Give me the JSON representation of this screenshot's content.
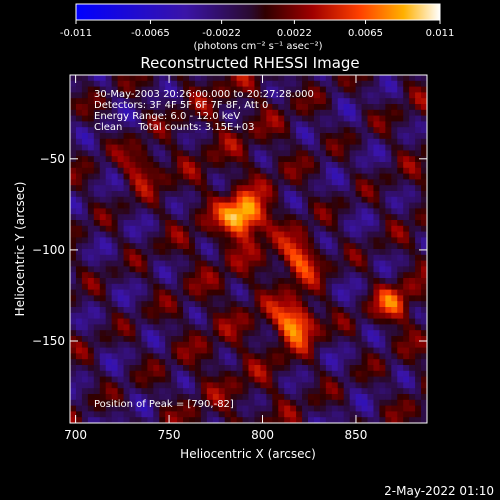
{
  "chart_data": {
    "type": "heatmap",
    "title": "Reconstructed RHESSI Image",
    "xlabel": "Heliocentric X (arcsec)",
    "ylabel": "Heliocentric Y (arcsec)",
    "xlim": [
      697,
      888
    ],
    "ylim": [
      -195,
      -4
    ],
    "x_ticks": [
      700,
      750,
      800,
      850
    ],
    "y_ticks": [
      -50,
      -100,
      -150
    ],
    "colorbar": {
      "vmin": -0.011,
      "vmax": 0.011,
      "ticks": [
        "-0.011",
        "-0.0065",
        "-0.0022",
        "0.0022",
        "0.0065",
        "0.011"
      ],
      "units_label": "(photons cm⁻² s⁻¹ asec⁻²)"
    },
    "annotations": [
      "30-May-2003 20:26:00.000 to 20:27:28.000",
      "Detectors: 3F 4F 5F 6F 7F 8F, Att 0",
      "Energy Range: 6.0 - 12.0 keV",
      "Clean     Total counts: 3.15E+03"
    ],
    "peak_label": "Position of Peak = [790,-82]",
    "peaks": [
      {
        "x": 790,
        "y": -82,
        "value": 0.011
      },
      {
        "x": 818,
        "y": -140,
        "value": 0.0095
      },
      {
        "x": 820,
        "y": -105,
        "value": 0.007
      },
      {
        "x": 870,
        "y": -130,
        "value": 0.006
      },
      {
        "x": 735,
        "y": -55,
        "value": 0.005
      }
    ]
  },
  "footer": {
    "date": "2-May-2022 01:10"
  }
}
